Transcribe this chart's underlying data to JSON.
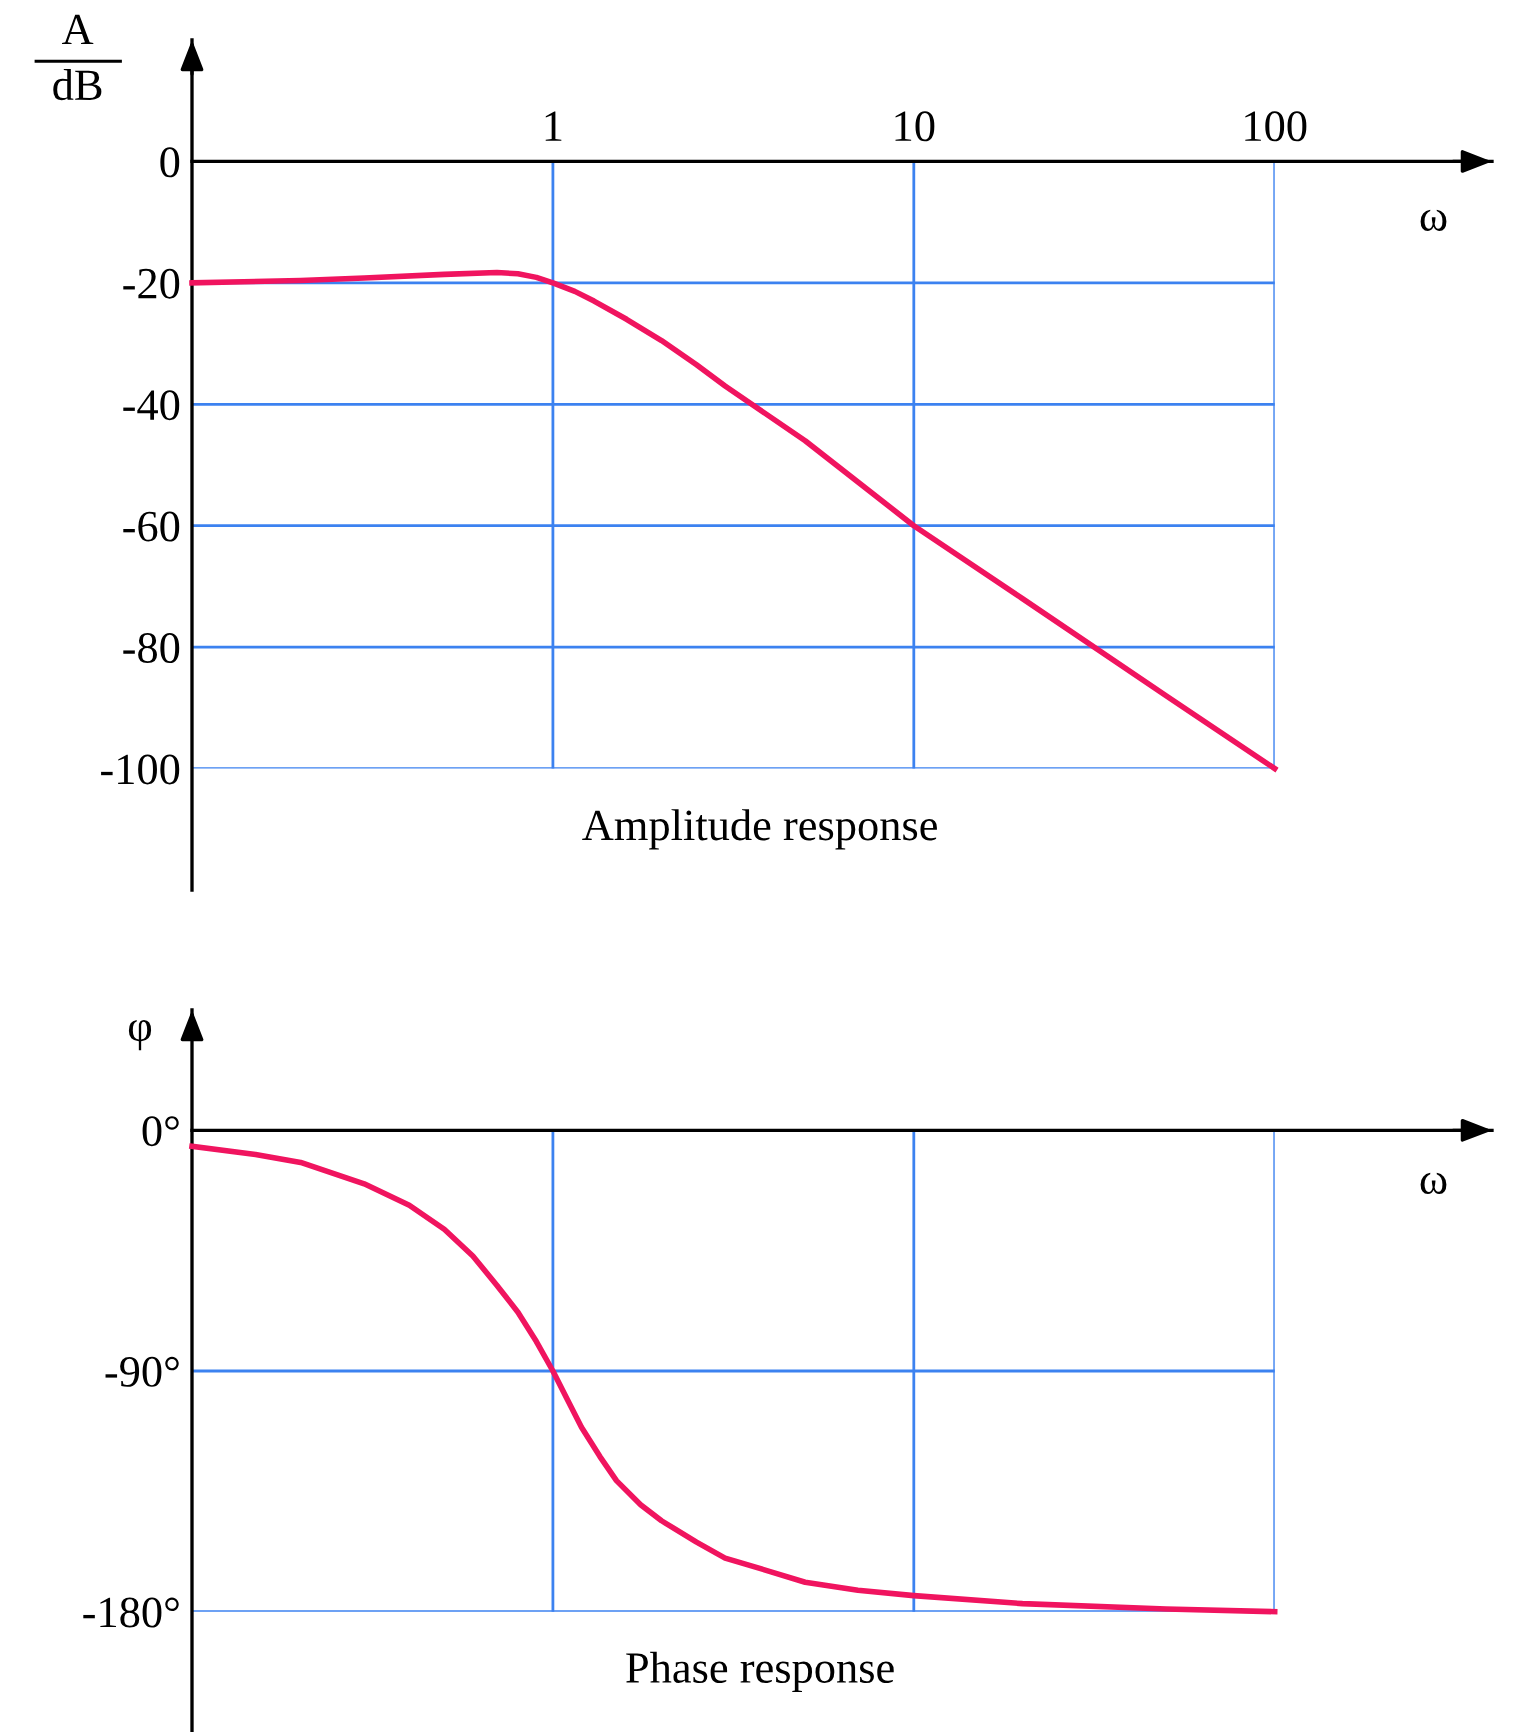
{
  "chart_data": [
    {
      "type": "line",
      "title": "Amplitude response",
      "ylabel": "A\ndB",
      "xlabel": "ω",
      "log": "x",
      "grid": true,
      "xlim": [
        0.1,
        400
      ],
      "xticks": [
        1,
        10,
        100
      ],
      "ylim": [
        -120,
        20
      ],
      "yticks": [
        0,
        -20,
        -40,
        -60,
        -80,
        -100
      ],
      "series": [
        {
          "color": "#f0145f",
          "x": [
            0.1,
            0.2,
            0.3,
            0.5,
            0.7,
            0.8,
            0.9,
            1,
            1.15,
            1.3,
            1.6,
            2,
            2.5,
            3,
            5,
            10,
            20,
            50,
            100
          ],
          "values": [
            -20,
            -19.6,
            -19.2,
            -18.6,
            -18.3,
            -18.5,
            -19.1,
            -20,
            -21.4,
            -23,
            -26,
            -29.5,
            -33.5,
            -37,
            -46,
            -60,
            -72,
            -88,
            -100
          ]
        }
      ]
    },
    {
      "type": "line",
      "title": "Phase response",
      "ylabel": "φ",
      "xlabel": "ω",
      "log": "x",
      "grid": true,
      "tick_labels": "y",
      "xlim": [
        0.1,
        400
      ],
      "xticks": [
        1,
        10,
        100
      ],
      "ylim": [
        -225,
        45
      ],
      "yticks": [
        {
          "value": 0,
          "label": "0°"
        },
        {
          "value": -90,
          "label": "-90°"
        },
        {
          "value": -180,
          "label": "-180°"
        }
      ],
      "series": [
        {
          "color": "#f0145f",
          "x": [
            0.1,
            0.15,
            0.2,
            0.3,
            0.4,
            0.5,
            0.6,
            0.7,
            0.8,
            0.9,
            1,
            1.1,
            1.2,
            1.35,
            1.5,
            1.75,
            2,
            2.5,
            3,
            4,
            5,
            7,
            10,
            20,
            50,
            100
          ],
          "values": [
            -6,
            -9,
            -12,
            -20,
            -28,
            -37,
            -47,
            -58,
            -68,
            -79,
            -90,
            -101,
            -111,
            -122,
            -131,
            -140,
            -146,
            -154,
            -160,
            -165,
            -169,
            -172,
            -174,
            -177,
            -179,
            -180
          ]
        }
      ]
    }
  ]
}
